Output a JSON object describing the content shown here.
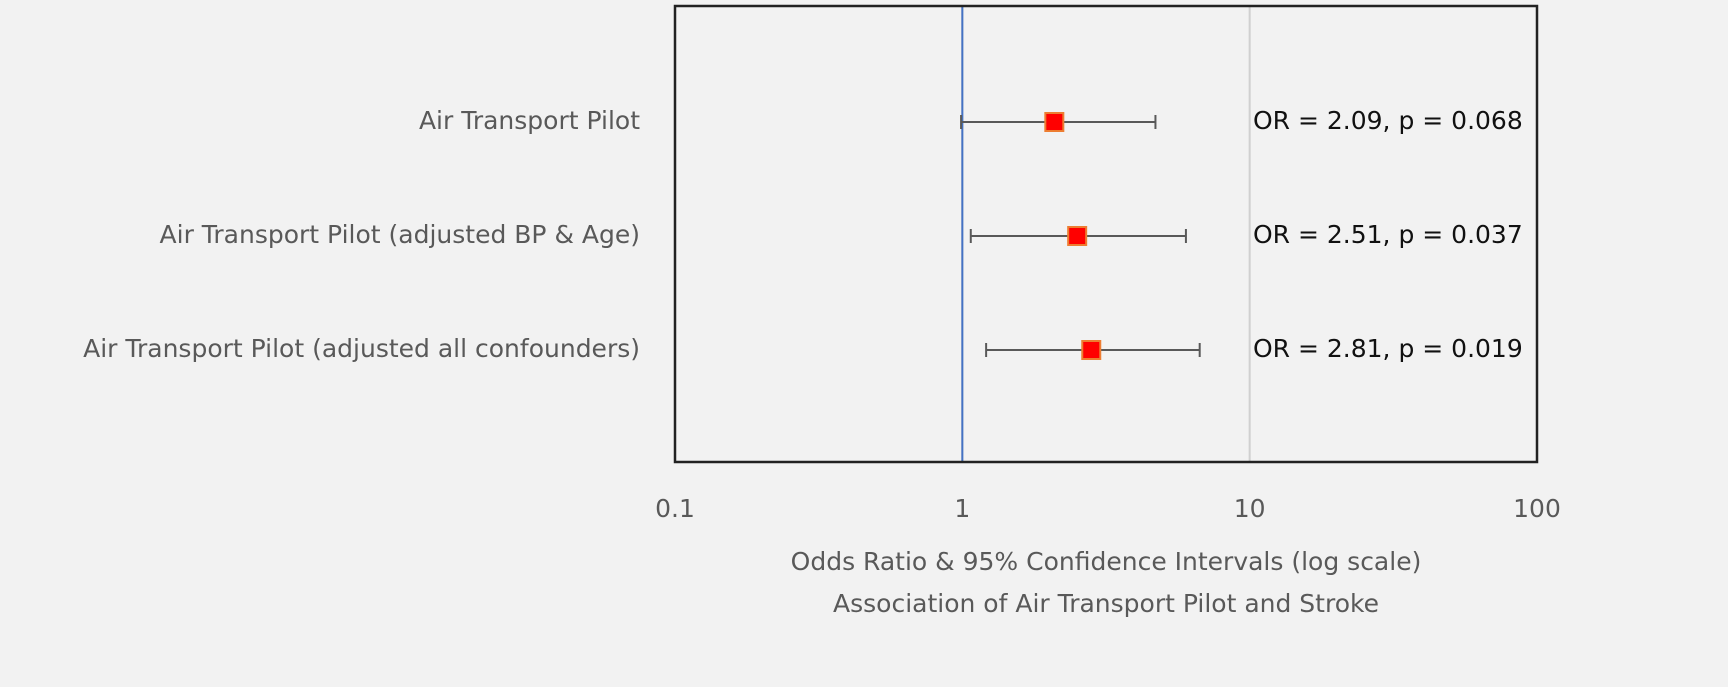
{
  "chart_data": {
    "type": "forest",
    "title": "Association of Air Transport Pilot and Stroke",
    "xlabel": "Odds Ratio & 95% Confidence Intervals (log scale)",
    "categories": [
      "Air Transport Pilot",
      "Air Transport Pilot (adjusted BP & Age)",
      "Air Transport Pilot (adjusted all confounders)"
    ],
    "values": [
      2.09,
      2.51,
      2.81
    ],
    "value_labels": [
      "OR = 2.09, p = 0.068",
      "OR = 2.51, p = 0.037",
      "OR = 2.81, p = 0.019"
    ],
    "lower": [
      0.99,
      1.07,
      1.21
    ],
    "upper": [
      4.7,
      6.0,
      6.7
    ],
    "xlim": [
      0.1,
      100
    ],
    "xticks": [
      0.1,
      1,
      10,
      100
    ],
    "xscale": "log",
    "grid": true,
    "reference_line": {
      "value": 1,
      "color": "#4472c4"
    },
    "color": "#ff0000",
    "marker_edge_color": "#ed7d31",
    "error_color": "#595959"
  }
}
